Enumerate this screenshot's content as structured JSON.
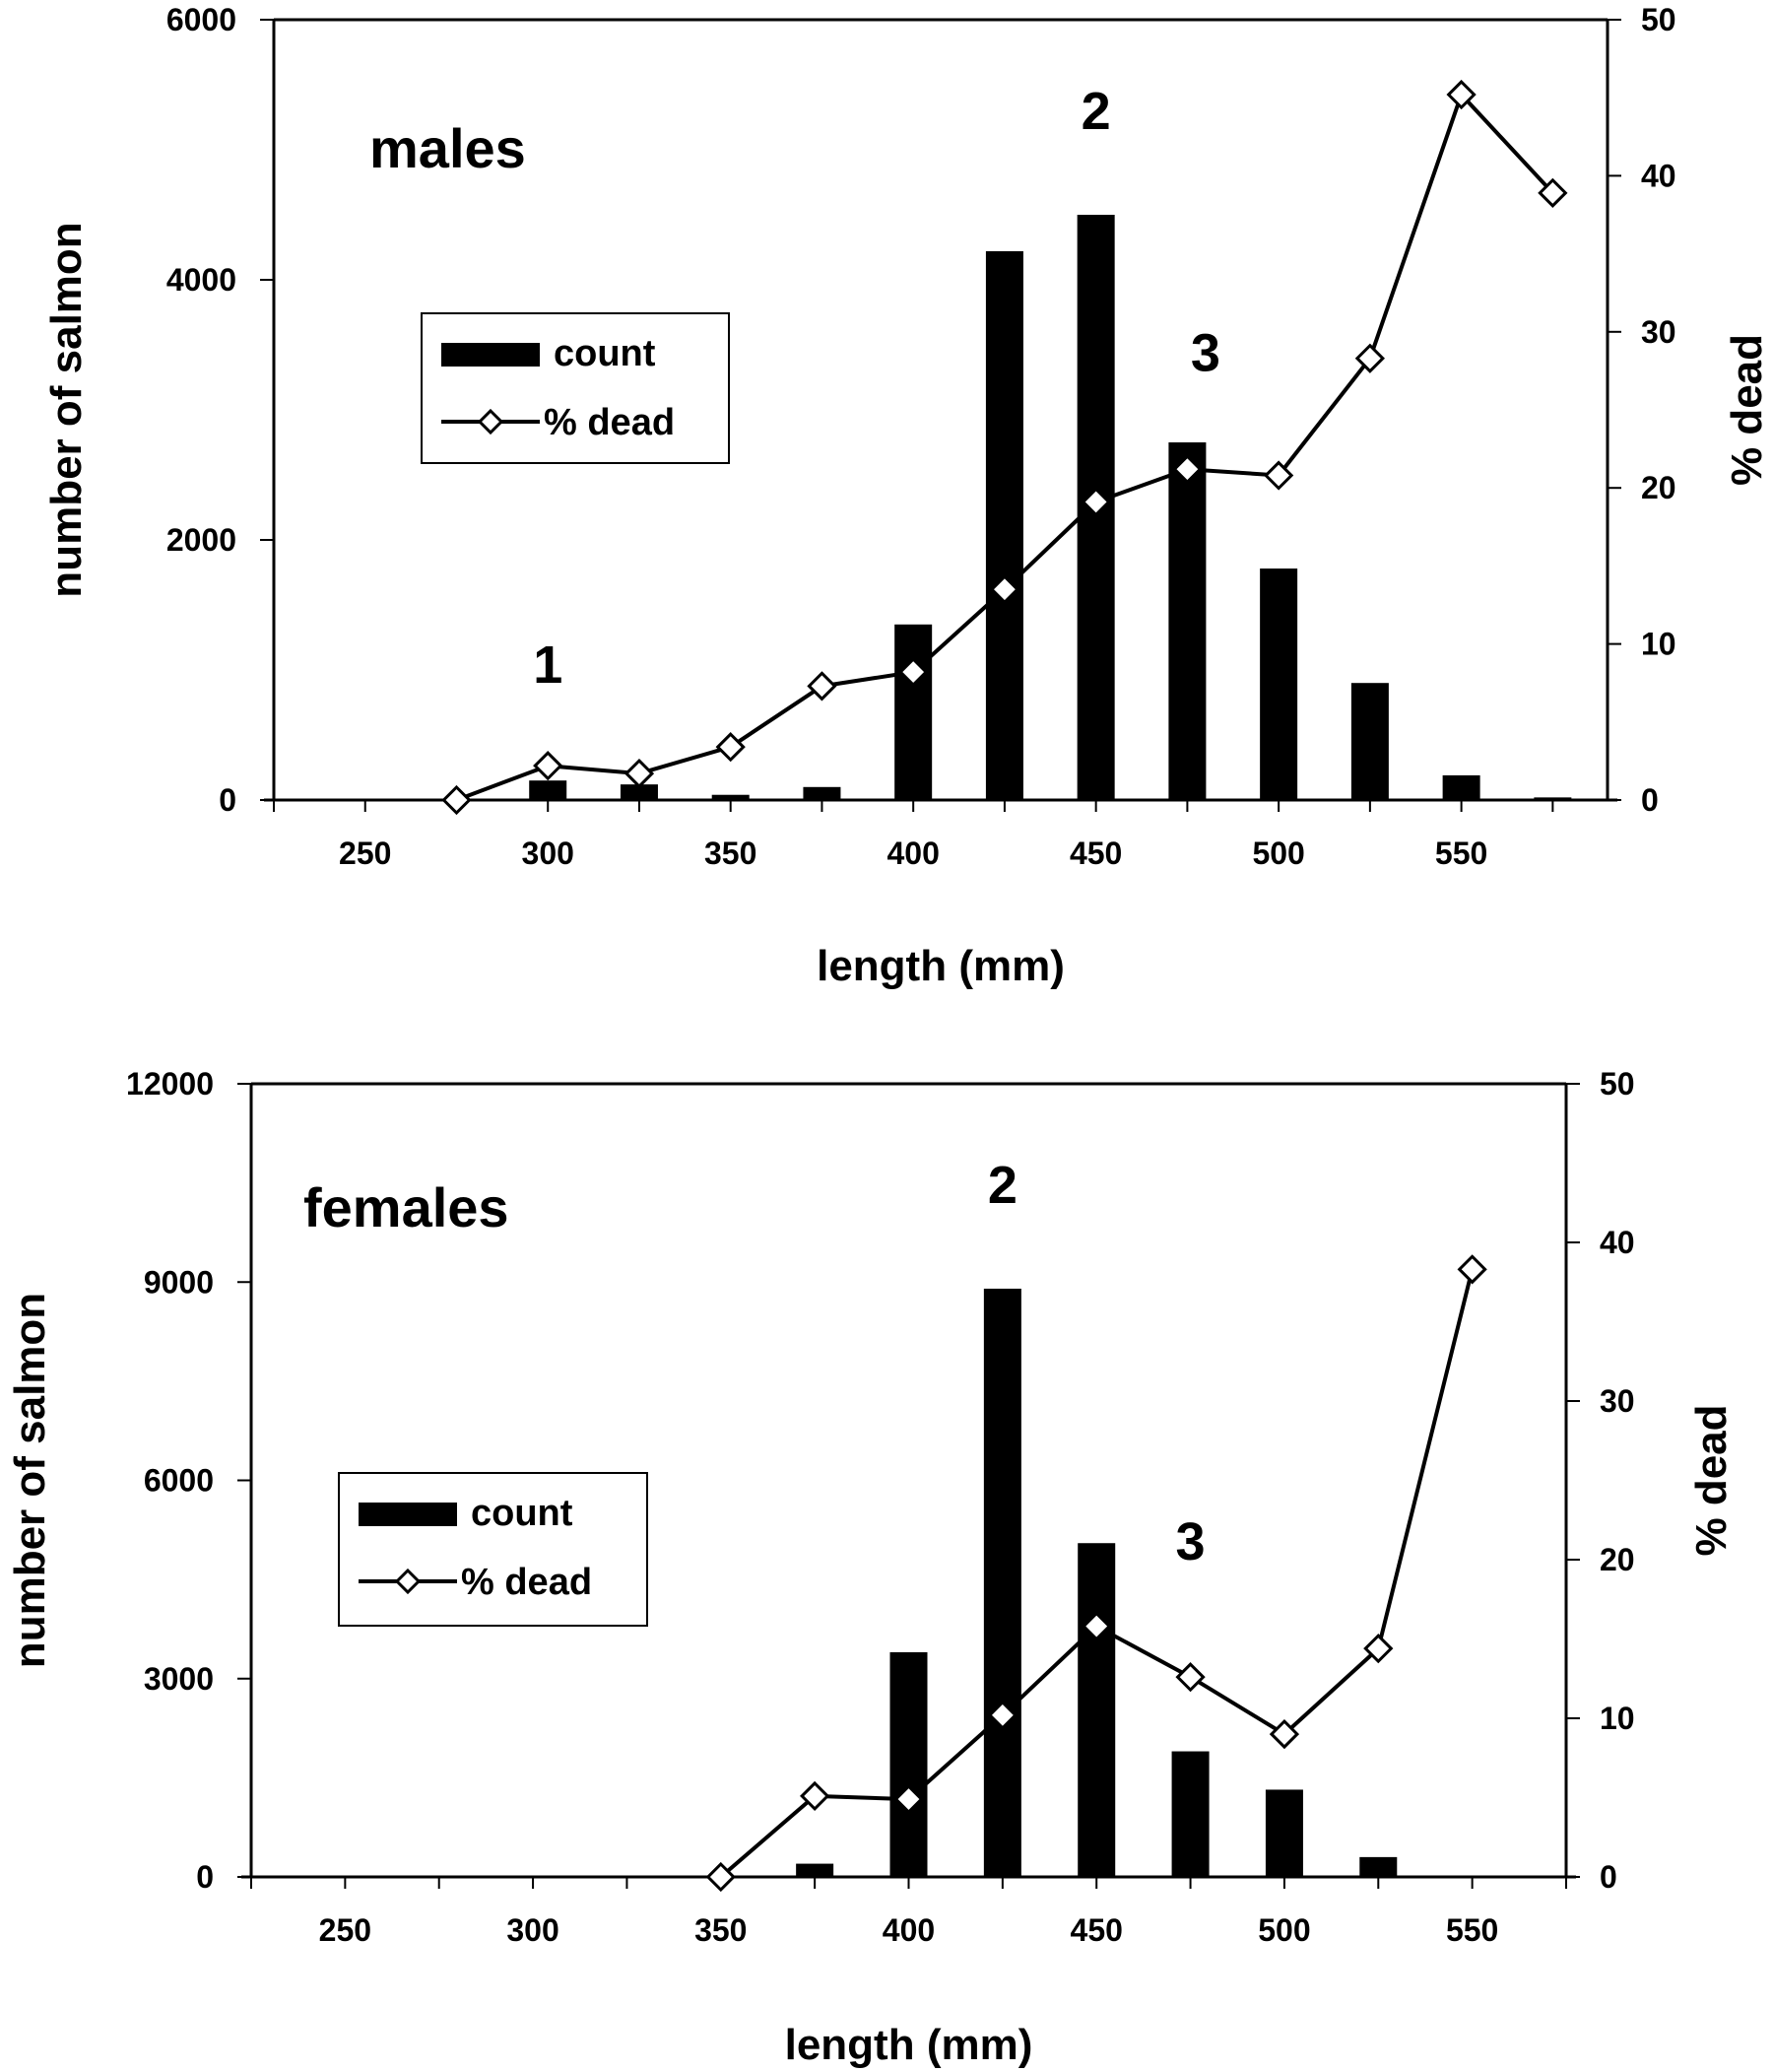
{
  "colors": {
    "bar": "#000000",
    "line": "#000000",
    "marker_fill": "#ffffff",
    "background": "#ffffff"
  },
  "chart_data": [
    {
      "type": "bar+line",
      "title": "",
      "annotation": "males",
      "xlabel": "length (mm)",
      "ylabel": "number of salmon",
      "y2label": "% dead",
      "xlim": [
        225,
        590
      ],
      "ylim": [
        0,
        6000
      ],
      "y2lim": [
        0,
        50
      ],
      "x_ticks": [
        250,
        300,
        350,
        400,
        450,
        500,
        550
      ],
      "x_minor_ticks": [
        225,
        250,
        275,
        300,
        325,
        350,
        375,
        400,
        425,
        450,
        475,
        500,
        525,
        550,
        575
      ],
      "y_ticks": [
        0,
        2000,
        4000,
        6000
      ],
      "y2_ticks": [
        0,
        10,
        20,
        30,
        40,
        50
      ],
      "legend": {
        "placement": "upper-left",
        "count_label": "count",
        "dead_label": "% dead"
      },
      "series": [
        {
          "name": "count",
          "axis": "left",
          "x": [
            275,
            300,
            325,
            350,
            375,
            400,
            425,
            450,
            475,
            500,
            525,
            550,
            575
          ],
          "values": [
            0,
            150,
            120,
            40,
            100,
            1350,
            4220,
            4500,
            2750,
            1780,
            900,
            190,
            20
          ]
        },
        {
          "name": "% dead",
          "axis": "right",
          "x": [
            275,
            300,
            325,
            350,
            375,
            400,
            425,
            450,
            475,
            500,
            525,
            550,
            575
          ],
          "values": [
            0,
            2.2,
            1.7,
            3.4,
            7.3,
            8.2,
            13.5,
            19.1,
            21.2,
            20.8,
            28.3,
            45.2,
            38.9
          ]
        }
      ],
      "peak_labels": [
        {
          "text": "1",
          "x": 300,
          "y2": 7.5
        },
        {
          "text": "2",
          "x": 450,
          "y2": 43
        },
        {
          "text": "3",
          "x": 480,
          "y2": 27.5
        }
      ]
    },
    {
      "type": "bar+line",
      "title": "",
      "annotation": "females",
      "xlabel": "length (mm)",
      "ylabel": "number of salmon",
      "y2label": "% dead",
      "xlim": [
        225,
        575
      ],
      "ylim": [
        0,
        12000
      ],
      "y2lim": [
        0,
        50
      ],
      "x_ticks": [
        250,
        300,
        350,
        400,
        450,
        500,
        550
      ],
      "x_minor_ticks": [
        225,
        250,
        275,
        300,
        325,
        350,
        375,
        400,
        425,
        450,
        475,
        500,
        525,
        550,
        575
      ],
      "y_ticks": [
        0,
        3000,
        6000,
        9000,
        12000
      ],
      "y2_ticks": [
        0,
        10,
        20,
        30,
        40,
        50
      ],
      "legend": {
        "placement": "middle-left",
        "count_label": "count",
        "dead_label": "% dead"
      },
      "series": [
        {
          "name": "count",
          "axis": "left",
          "x": [
            375,
            400,
            425,
            450,
            475,
            500,
            525
          ],
          "values": [
            200,
            3400,
            8900,
            5050,
            1900,
            1320,
            300
          ]
        },
        {
          "name": "% dead",
          "axis": "right",
          "x": [
            350,
            375,
            400,
            425,
            450,
            475,
            500,
            525,
            550
          ],
          "values": [
            0,
            5.1,
            4.9,
            10.2,
            15.8,
            12.6,
            9.0,
            14.4,
            38.3
          ]
        }
      ],
      "peak_labels": [
        {
          "text": "2",
          "x": 425,
          "y2": 42.5
        },
        {
          "text": "3",
          "x": 475,
          "y2": 20
        }
      ]
    }
  ]
}
